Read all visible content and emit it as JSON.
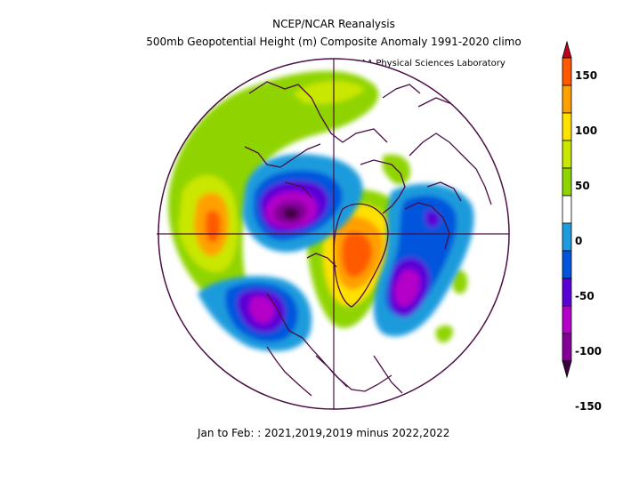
{
  "title": {
    "line1": "NCEP/NCAR Reanalysis",
    "line2": "500mb Geopotential Height (m) Composite Anomaly 1991-2020 climo",
    "credit": "NOAA Physical Sciences Laboratory"
  },
  "footer": "Jan to Feb: : 2021,2019,2019 minus 2022,2022",
  "colorbar": {
    "labels": [
      "150",
      "100",
      "50",
      "0",
      "-50",
      "-100",
      "-150"
    ],
    "bins": [
      {
        "from": 150,
        "to": null,
        "color": "#c0001d"
      },
      {
        "from": 125,
        "to": 150,
        "color": "#ff5a00"
      },
      {
        "from": 100,
        "to": 125,
        "color": "#ffa000"
      },
      {
        "from": 75,
        "to": 100,
        "color": "#ffe100"
      },
      {
        "from": 50,
        "to": 75,
        "color": "#c9e700"
      },
      {
        "from": 25,
        "to": 50,
        "color": "#8fd400"
      },
      {
        "from": -25,
        "to": 25,
        "color": "#ffffff"
      },
      {
        "from": -50,
        "to": -25,
        "color": "#1e9bdc"
      },
      {
        "from": -75,
        "to": -50,
        "color": "#0055dc"
      },
      {
        "from": -100,
        "to": -75,
        "color": "#5a00d7"
      },
      {
        "from": -125,
        "to": -100,
        "color": "#b400c8"
      },
      {
        "from": -150,
        "to": -125,
        "color": "#820096"
      },
      {
        "from": null,
        "to": -150,
        "color": "#3c003c"
      }
    ]
  },
  "map": {
    "projection": "polar stereographic, North Pole centered",
    "outline_color": "#4b0f46"
  }
}
